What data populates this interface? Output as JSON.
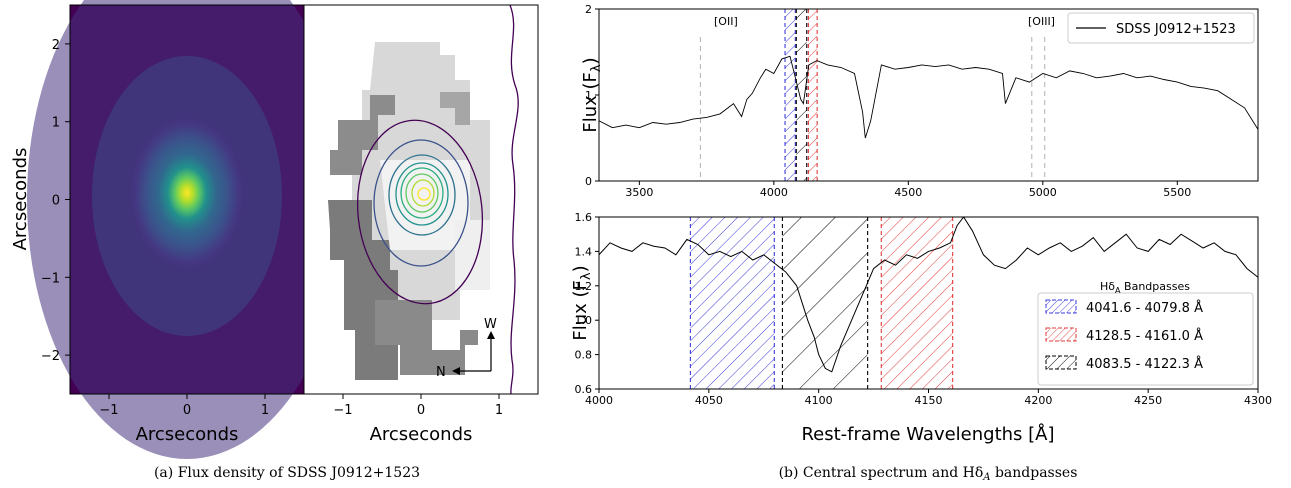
{
  "captions": {
    "a": "(a) Flux density of SDSS J0912+1523",
    "b": "(b) Central spectrum and Hδ",
    "b_sub": "A",
    "b_tail": " bandpasses"
  },
  "chart_data": [
    {
      "type": "heatmap",
      "panel": "flux-density-image",
      "xlabel": "Arcseconds",
      "ylabel": "Arcseconds",
      "xlim": [
        -1.5,
        1.5
      ],
      "ylim": [
        -2.5,
        2.5
      ],
      "xticks": [
        -1,
        0,
        1
      ],
      "yticks": [
        -2,
        -1,
        0,
        1,
        2
      ],
      "colormap": "viridis",
      "peak": {
        "x": 0,
        "y": 0.1
      }
    },
    {
      "type": "heatmap",
      "panel": "ifu-map",
      "xlabel": "Arcseconds",
      "xlim": [
        -1.5,
        1.5
      ],
      "ylim": [
        -2.5,
        2.5
      ],
      "xticks": [
        -1,
        0,
        1
      ],
      "compass": {
        "north": "N",
        "west": "W"
      },
      "contour_colors": [
        "#440154",
        "#3b528b",
        "#21918c",
        "#5ec962",
        "#fde725"
      ]
    },
    {
      "type": "line",
      "panel": "full-spectrum",
      "ylabel": "Flux (F",
      "ylabel_sub": "λ",
      "ylabel_close": ")",
      "xlim": [
        3350,
        5800
      ],
      "ylim": [
        0,
        2
      ],
      "xticks": [
        3500,
        4000,
        4500,
        5000,
        5500
      ],
      "yticks": [
        0,
        1,
        2
      ],
      "legend": {
        "position": "top-right",
        "entries": [
          "SDSS J0912+1523"
        ]
      },
      "annotations": [
        "[OII]",
        "[OIII]"
      ],
      "lines_at": [
        3727,
        4959,
        5007
      ],
      "bands": [
        {
          "range": [
            4041.6,
            4079.8
          ],
          "color": "#3b3bdb"
        },
        {
          "range": [
            4128.5,
            4161.0
          ],
          "color": "#e23b3b"
        },
        {
          "range": [
            4083.5,
            4122.3
          ],
          "color": "#000000"
        }
      ],
      "series": [
        {
          "name": "SDSS J0912+1523",
          "x": [
            3350,
            3400,
            3450,
            3500,
            3550,
            3600,
            3650,
            3700,
            3750,
            3800,
            3850,
            3880,
            3900,
            3920,
            3950,
            3970,
            4000,
            4030,
            4060,
            4080,
            4100,
            4110,
            4130,
            4160,
            4200,
            4250,
            4300,
            4330,
            4340,
            4360,
            4400,
            4450,
            4500,
            4550,
            4600,
            4650,
            4700,
            4750,
            4800,
            4850,
            4861,
            4900,
            4950,
            5000,
            5050,
            5100,
            5150,
            5200,
            5250,
            5300,
            5350,
            5400,
            5450,
            5500,
            5550,
            5600,
            5650,
            5700,
            5750,
            5800
          ],
          "y": [
            0.7,
            0.62,
            0.65,
            0.62,
            0.68,
            0.66,
            0.68,
            0.72,
            0.74,
            0.78,
            0.9,
            0.75,
            0.95,
            1.02,
            1.2,
            1.3,
            1.25,
            1.42,
            1.45,
            1.2,
            0.95,
            0.9,
            1.35,
            1.4,
            1.35,
            1.32,
            1.25,
            0.8,
            0.5,
            0.7,
            1.35,
            1.3,
            1.32,
            1.35,
            1.33,
            1.35,
            1.3,
            1.32,
            1.3,
            1.25,
            0.9,
            1.2,
            1.15,
            1.25,
            1.2,
            1.28,
            1.25,
            1.2,
            1.22,
            1.25,
            1.2,
            1.22,
            1.18,
            1.15,
            1.1,
            1.08,
            1.05,
            0.95,
            0.85,
            0.6
          ]
        }
      ]
    },
    {
      "type": "line",
      "panel": "hdelta-zoom",
      "xlabel": "Rest-frame Wavelengths [",
      "xlabel_unit": "Å",
      "xlabel_close": "]",
      "ylabel": "Flux (F",
      "ylabel_sub": "λ",
      "ylabel_close": ")",
      "xlim": [
        4000,
        4300
      ],
      "ylim": [
        0.6,
        1.6
      ],
      "xticks": [
        4000,
        4050,
        4100,
        4150,
        4200,
        4250,
        4300
      ],
      "yticks": [
        0.6,
        0.8,
        1.0,
        1.2,
        1.4,
        1.6
      ],
      "legend": {
        "position": "bottom-right",
        "title": "Hδ",
        "title_sub": "A",
        "title_tail": " Bandpasses",
        "entries": [
          "4041.6 - 4079.8 Å",
          "4128.5 - 4161.0 Å",
          "4083.5 - 4122.3 Å"
        ]
      },
      "bands": [
        {
          "range": [
            4041.6,
            4079.8
          ],
          "color": "#3b3bdb"
        },
        {
          "range": [
            4128.5,
            4161.0
          ],
          "color": "#e23b3b"
        },
        {
          "range": [
            4083.5,
            4122.3
          ],
          "color": "#000000"
        }
      ],
      "series": [
        {
          "name": "SDSS J0912+1523",
          "x": [
            4000,
            4005,
            4010,
            4015,
            4020,
            4025,
            4030,
            4035,
            4040,
            4045,
            4050,
            4055,
            4060,
            4065,
            4070,
            4075,
            4080,
            4085,
            4090,
            4095,
            4098,
            4100,
            4103,
            4106,
            4110,
            4115,
            4120,
            4125,
            4130,
            4135,
            4140,
            4145,
            4150,
            4155,
            4160,
            4163,
            4166,
            4170,
            4175,
            4180,
            4185,
            4190,
            4195,
            4200,
            4205,
            4210,
            4215,
            4220,
            4225,
            4230,
            4235,
            4240,
            4245,
            4250,
            4255,
            4260,
            4265,
            4270,
            4275,
            4280,
            4285,
            4290,
            4295,
            4300
          ],
          "y": [
            1.38,
            1.45,
            1.42,
            1.4,
            1.45,
            1.43,
            1.42,
            1.38,
            1.47,
            1.44,
            1.38,
            1.4,
            1.37,
            1.4,
            1.35,
            1.38,
            1.33,
            1.28,
            1.2,
            1.0,
            0.9,
            0.8,
            0.72,
            0.7,
            0.85,
            1.0,
            1.15,
            1.3,
            1.35,
            1.32,
            1.38,
            1.36,
            1.4,
            1.42,
            1.45,
            1.55,
            1.6,
            1.52,
            1.38,
            1.32,
            1.3,
            1.35,
            1.42,
            1.38,
            1.42,
            1.45,
            1.4,
            1.43,
            1.48,
            1.4,
            1.45,
            1.5,
            1.42,
            1.4,
            1.47,
            1.44,
            1.5,
            1.46,
            1.42,
            1.45,
            1.4,
            1.38,
            1.3,
            1.25
          ]
        }
      ]
    }
  ]
}
